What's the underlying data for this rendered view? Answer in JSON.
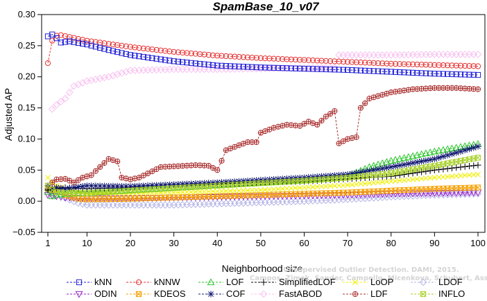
{
  "chart_data": {
    "type": "line",
    "title": "SpamBase_10_v07",
    "xlabel": "Neighborhood size",
    "ylabel": "Adjusted AP",
    "xlim": [
      1,
      100
    ],
    "ylim": [
      -0.05,
      0.3
    ],
    "xticks": [
      1,
      10,
      20,
      30,
      40,
      50,
      60,
      70,
      80,
      90,
      100
    ],
    "yticks": [
      -0.05,
      0.0,
      0.05,
      0.1,
      0.15,
      0.2,
      0.25,
      0.3
    ],
    "ytick_labels": [
      "−0.05",
      "0.00",
      "0.05",
      "0.10",
      "0.15",
      "0.20",
      "0.25",
      "0.30"
    ],
    "grid": false,
    "legend_position": "bottom",
    "series": [
      {
        "name": "kNN",
        "color": "#1f1fd6",
        "marker": "square",
        "marker_every": 1,
        "points": [
          [
            1,
            0.265
          ],
          [
            2,
            0.268
          ],
          [
            3,
            0.262
          ],
          [
            4,
            0.255
          ],
          [
            6,
            0.257
          ],
          [
            10,
            0.252
          ],
          [
            15,
            0.243
          ],
          [
            20,
            0.235
          ],
          [
            30,
            0.225
          ],
          [
            40,
            0.218
          ],
          [
            50,
            0.215
          ],
          [
            60,
            0.213
          ],
          [
            70,
            0.211
          ],
          [
            80,
            0.208
          ],
          [
            90,
            0.205
          ],
          [
            100,
            0.203
          ]
        ]
      },
      {
        "name": "kNNW",
        "color": "#e63232",
        "marker": "circle",
        "marker_every": 1,
        "points": [
          [
            1,
            0.222
          ],
          [
            2,
            0.258
          ],
          [
            3,
            0.266
          ],
          [
            4,
            0.267
          ],
          [
            6,
            0.264
          ],
          [
            10,
            0.258
          ],
          [
            15,
            0.253
          ],
          [
            20,
            0.248
          ],
          [
            30,
            0.24
          ],
          [
            40,
            0.234
          ],
          [
            50,
            0.23
          ],
          [
            60,
            0.227
          ],
          [
            70,
            0.224
          ],
          [
            80,
            0.221
          ],
          [
            90,
            0.219
          ],
          [
            100,
            0.217
          ]
        ]
      },
      {
        "name": "LOF",
        "color": "#2ac42a",
        "marker": "triangle",
        "marker_every": 1,
        "points": [
          [
            1,
            0.015
          ],
          [
            2,
            0.008
          ],
          [
            3,
            0.01
          ],
          [
            5,
            0.012
          ],
          [
            10,
            0.013
          ],
          [
            20,
            0.018
          ],
          [
            30,
            0.022
          ],
          [
            40,
            0.026
          ],
          [
            50,
            0.03
          ],
          [
            60,
            0.034
          ],
          [
            70,
            0.04
          ],
          [
            75,
            0.055
          ],
          [
            80,
            0.065
          ],
          [
            90,
            0.08
          ],
          [
            100,
            0.092
          ]
        ]
      },
      {
        "name": "SimplifiedLOF",
        "color": "#000000",
        "marker": "plus",
        "marker_every": 1,
        "points": [
          [
            1,
            0.018
          ],
          [
            3,
            0.02
          ],
          [
            5,
            0.022
          ],
          [
            10,
            0.02
          ],
          [
            20,
            0.022
          ],
          [
            30,
            0.025
          ],
          [
            40,
            0.028
          ],
          [
            50,
            0.03
          ],
          [
            60,
            0.032
          ],
          [
            70,
            0.036
          ],
          [
            80,
            0.04
          ],
          [
            90,
            0.05
          ],
          [
            100,
            0.058
          ]
        ]
      },
      {
        "name": "LoOP",
        "color": "#f0f000",
        "marker": "x",
        "marker_every": 1,
        "points": [
          [
            1,
            0.038
          ],
          [
            2,
            0.03
          ],
          [
            3,
            0.025
          ],
          [
            5,
            0.02
          ],
          [
            8,
            0.015
          ],
          [
            10,
            0.012
          ],
          [
            20,
            0.012
          ],
          [
            30,
            0.014
          ],
          [
            40,
            0.016
          ],
          [
            50,
            0.018
          ],
          [
            60,
            0.022
          ],
          [
            70,
            0.026
          ],
          [
            80,
            0.032
          ],
          [
            90,
            0.038
          ],
          [
            100,
            0.043
          ]
        ]
      },
      {
        "name": "LDOF",
        "color": "#b4b4e6",
        "marker": "diamond",
        "marker_every": 1,
        "points": [
          [
            1,
            0.02
          ],
          [
            3,
            0.015
          ],
          [
            5,
            0.005
          ],
          [
            8,
            -0.003
          ],
          [
            10,
            -0.006
          ],
          [
            20,
            -0.006
          ],
          [
            30,
            -0.006
          ],
          [
            40,
            -0.004
          ],
          [
            50,
            -0.002
          ],
          [
            60,
            0.0
          ],
          [
            70,
            0.003
          ],
          [
            80,
            0.007
          ],
          [
            90,
            0.01
          ],
          [
            100,
            0.012
          ]
        ]
      },
      {
        "name": "ODIN",
        "color": "#9a1fc8",
        "marker": "triangle-down",
        "marker_every": 1,
        "points": [
          [
            1,
            0.01
          ],
          [
            3,
            0.008
          ],
          [
            5,
            0.006
          ],
          [
            10,
            0.005
          ],
          [
            20,
            0.005
          ],
          [
            30,
            0.006
          ],
          [
            40,
            0.007
          ],
          [
            50,
            0.008
          ],
          [
            60,
            0.009
          ],
          [
            70,
            0.01
          ],
          [
            80,
            0.012
          ],
          [
            90,
            0.013
          ],
          [
            100,
            0.014
          ]
        ]
      },
      {
        "name": "KDEOS",
        "color": "#f5a000",
        "marker": "square-x",
        "marker_every": 1,
        "points": [
          [
            1,
            0.02
          ],
          [
            3,
            0.018
          ],
          [
            5,
            0.01
          ],
          [
            8,
            0.004
          ],
          [
            10,
            0.003
          ],
          [
            20,
            0.004
          ],
          [
            30,
            0.006
          ],
          [
            40,
            0.008
          ],
          [
            50,
            0.01
          ],
          [
            60,
            0.012
          ],
          [
            70,
            0.014
          ],
          [
            80,
            0.017
          ],
          [
            90,
            0.02
          ],
          [
            100,
            0.022
          ]
        ]
      },
      {
        "name": "COF",
        "color": "#101870",
        "marker": "asterisk",
        "marker_every": 1,
        "points": [
          [
            1,
            0.025
          ],
          [
            2,
            0.02
          ],
          [
            3,
            0.022
          ],
          [
            5,
            0.02
          ],
          [
            10,
            0.025
          ],
          [
            20,
            0.024
          ],
          [
            30,
            0.027
          ],
          [
            40,
            0.03
          ],
          [
            50,
            0.034
          ],
          [
            60,
            0.038
          ],
          [
            70,
            0.043
          ],
          [
            80,
            0.055
          ],
          [
            90,
            0.068
          ],
          [
            100,
            0.088
          ]
        ]
      },
      {
        "name": "FastABOD",
        "color": "#f8c0f0",
        "marker": "diamond",
        "marker_every": 1,
        "points": [
          [
            2,
            0.148
          ],
          [
            3,
            0.155
          ],
          [
            5,
            0.165
          ],
          [
            7,
            0.185
          ],
          [
            10,
            0.193
          ],
          [
            15,
            0.2
          ],
          [
            20,
            0.21
          ],
          [
            30,
            0.212
          ],
          [
            40,
            0.212
          ],
          [
            50,
            0.213
          ],
          [
            60,
            0.214
          ],
          [
            67,
            0.215
          ],
          [
            68,
            0.235
          ],
          [
            80,
            0.235
          ],
          [
            90,
            0.236
          ],
          [
            100,
            0.236
          ]
        ]
      },
      {
        "name": "LDF",
        "color": "#aa3030",
        "marker": "circle-plus",
        "marker_every": 1,
        "points": [
          [
            1,
            0.02
          ],
          [
            2,
            0.03
          ],
          [
            3,
            0.035
          ],
          [
            5,
            0.036
          ],
          [
            7,
            0.03
          ],
          [
            9,
            0.038
          ],
          [
            11,
            0.042
          ],
          [
            13,
            0.055
          ],
          [
            15,
            0.068
          ],
          [
            17,
            0.064
          ],
          [
            18,
            0.038
          ],
          [
            20,
            0.035
          ],
          [
            22,
            0.038
          ],
          [
            25,
            0.048
          ],
          [
            27,
            0.055
          ],
          [
            30,
            0.056
          ],
          [
            35,
            0.058
          ],
          [
            38,
            0.057
          ],
          [
            40,
            0.05
          ],
          [
            41,
            0.065
          ],
          [
            42,
            0.082
          ],
          [
            45,
            0.09
          ],
          [
            47,
            0.095
          ],
          [
            49,
            0.095
          ],
          [
            50,
            0.11
          ],
          [
            53,
            0.118
          ],
          [
            56,
            0.123
          ],
          [
            59,
            0.121
          ],
          [
            61,
            0.128
          ],
          [
            63,
            0.123
          ],
          [
            65,
            0.136
          ],
          [
            67,
            0.145
          ],
          [
            68,
            0.093
          ],
          [
            70,
            0.1
          ],
          [
            72,
            0.103
          ],
          [
            73,
            0.15
          ],
          [
            75,
            0.165
          ],
          [
            80,
            0.175
          ],
          [
            85,
            0.18
          ],
          [
            90,
            0.182
          ],
          [
            95,
            0.182
          ],
          [
            100,
            0.18
          ]
        ]
      },
      {
        "name": "INFLO",
        "color": "#a8d028",
        "marker": "square-x",
        "marker_every": 1,
        "points": [
          [
            1,
            0.025
          ],
          [
            2,
            0.018
          ],
          [
            3,
            0.015
          ],
          [
            5,
            0.013
          ],
          [
            10,
            0.013
          ],
          [
            20,
            0.017
          ],
          [
            30,
            0.021
          ],
          [
            40,
            0.025
          ],
          [
            50,
            0.029
          ],
          [
            60,
            0.033
          ],
          [
            70,
            0.038
          ],
          [
            80,
            0.045
          ],
          [
            90,
            0.057
          ],
          [
            100,
            0.07
          ]
        ]
      }
    ]
  },
  "watermark": {
    "line1": "Unsupervised Outlier Detection. DAMI, 2015.",
    "line2": "Campos, Zimek, Sander, Campello, Micenkova, Schubert, Assent, Houle"
  }
}
